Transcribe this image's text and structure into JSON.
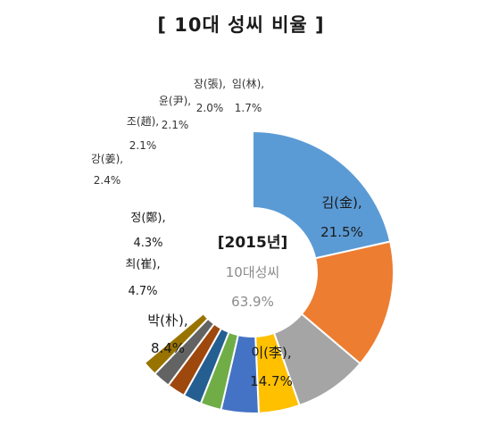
{
  "chart_data": {
    "type": "pie",
    "style": "donut",
    "title": "[ 10대 성씨 비율 ]",
    "center": {
      "line1": "[2015년]",
      "line2": "10대성씨",
      "line3": "63.9%"
    },
    "slices": [
      {
        "name": "김(金),",
        "label": "21.5%",
        "value": 21.5,
        "color": "#5B9BD5"
      },
      {
        "name": "이(李),",
        "label": "14.7%",
        "value": 14.7,
        "color": "#ED7D31"
      },
      {
        "name": "박(朴),",
        "label": "8.4%",
        "value": 8.4,
        "color": "#A5A5A5"
      },
      {
        "name": "최(崔),",
        "label": "4.7%",
        "value": 4.7,
        "color": "#FFC000"
      },
      {
        "name": "정(鄭),",
        "label": "4.3%",
        "value": 4.3,
        "color": "#4472C4"
      },
      {
        "name": "강(姜),",
        "label": "2.4%",
        "value": 2.4,
        "color": "#70AD47"
      },
      {
        "name": "조(趙),",
        "label": "2.1%",
        "value": 2.1,
        "color": "#255E91"
      },
      {
        "name": "윤(尹),",
        "label": "2.1%",
        "value": 2.1,
        "color": "#9E480E"
      },
      {
        "name": "장(張),",
        "label": "2.0%",
        "value": 2.0,
        "color": "#636363"
      },
      {
        "name": "임(林),",
        "label": "1.7%",
        "value": 1.7,
        "color": "#997300"
      }
    ]
  }
}
